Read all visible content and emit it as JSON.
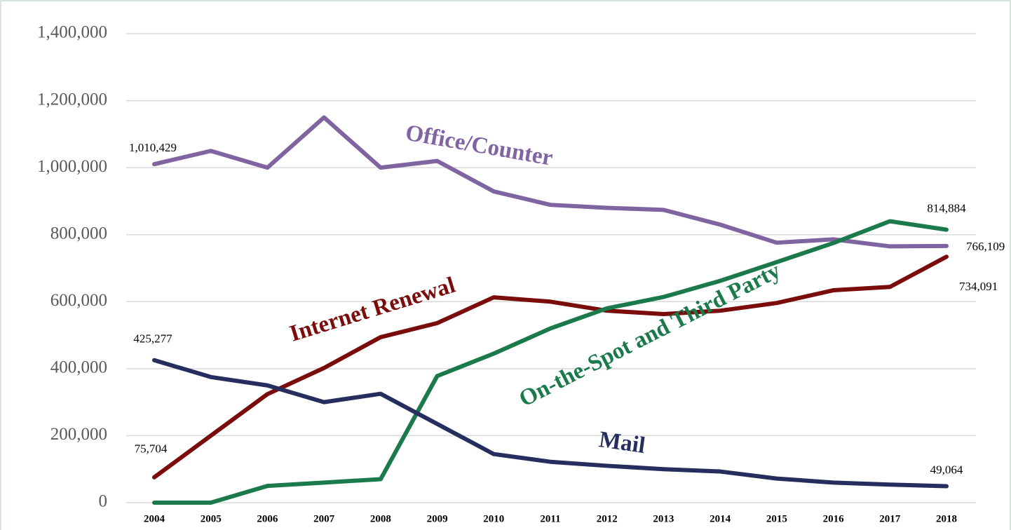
{
  "chart_data": {
    "type": "line",
    "x": [
      2004,
      2005,
      2006,
      2007,
      2008,
      2009,
      2010,
      2011,
      2012,
      2013,
      2014,
      2015,
      2016,
      2017,
      2018
    ],
    "xlim": [
      2004,
      2018
    ],
    "xticks": [
      2004,
      2005,
      2006,
      2007,
      2008,
      2009,
      2010,
      2011,
      2012,
      2013,
      2014,
      2015,
      2016,
      2017,
      2018
    ],
    "ylim": [
      0,
      1400000
    ],
    "yticks": [
      0,
      {
        "value": 200000,
        "label": "200,000"
      },
      {
        "value": 400000,
        "label": "400,000"
      },
      {
        "value": 600000,
        "label": "600,000"
      },
      {
        "value": 800000,
        "label": "800,000"
      },
      {
        "value": 1000000,
        "label": "1,000,000"
      },
      {
        "value": 1200000,
        "label": "1,200,000"
      },
      {
        "value": 1400000,
        "label": "1,400,000"
      }
    ],
    "grid": true,
    "series": [
      {
        "name": "Office/Counter",
        "color": "#8064a2",
        "values": [
          1010429,
          1050000,
          1000000,
          1150000,
          1000000,
          1020000,
          929000,
          889000,
          880000,
          874000,
          830000,
          776000,
          786000,
          765000,
          766109
        ],
        "value_labels": [
          "1,010,429",
          null,
          null,
          null,
          null,
          null,
          null,
          null,
          null,
          null,
          null,
          null,
          null,
          null,
          "766,109"
        ]
      },
      {
        "name": "Internet Renewal",
        "color": "#7b0c0c",
        "values": [
          75704,
          200000,
          324000,
          402000,
          494000,
          536000,
          613000,
          600000,
          573000,
          563000,
          573000,
          596000,
          634000,
          644000,
          734091
        ],
        "value_labels": [
          "75,704",
          null,
          null,
          null,
          null,
          null,
          null,
          null,
          null,
          null,
          null,
          null,
          null,
          null,
          "734,091"
        ]
      },
      {
        "name": "On-the-Spot and Third Party",
        "color": "#1b7a4b",
        "values": [
          0,
          0,
          50000,
          60000,
          70000,
          378000,
          445000,
          520000,
          580000,
          614000,
          662000,
          718000,
          775000,
          840000,
          814884
        ],
        "value_labels": [
          null,
          null,
          null,
          null,
          null,
          null,
          null,
          null,
          null,
          null,
          null,
          null,
          null,
          null,
          "814,884"
        ]
      },
      {
        "name": "Mail",
        "color": "#252e5e",
        "values": [
          425277,
          375000,
          350000,
          300000,
          325000,
          235000,
          145000,
          122000,
          110000,
          100000,
          93000,
          72000,
          60000,
          54000,
          49064
        ],
        "value_labels": [
          "425,277",
          null,
          null,
          null,
          null,
          null,
          null,
          null,
          null,
          null,
          null,
          null,
          null,
          null,
          "49,064"
        ]
      }
    ]
  }
}
